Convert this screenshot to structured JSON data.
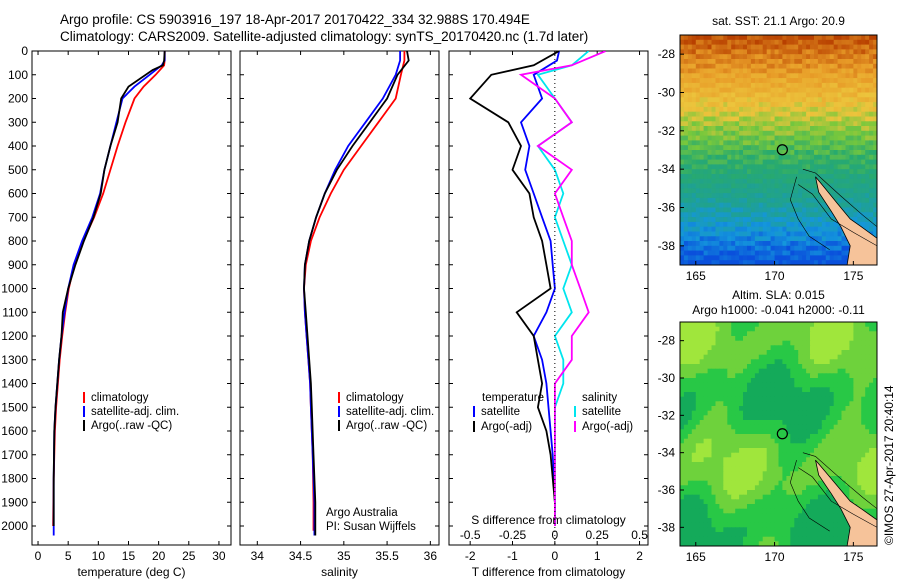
{
  "header": {
    "line1": "Argo profile: CS 5903916_197 18-Apr-2017 20170422_334 32.988S 170.494E",
    "line2": "Climatology: CARS2009. Satellite-adjusted climatology: synTS_20170420.nc (1.7d later)"
  },
  "colors": {
    "climatology": "#ff0000",
    "satellite": "#0000ff",
    "argo": "#000000",
    "sal_satellite": "#00e5ee",
    "sal_argo": "#ff00ff",
    "land": "#f6c39a"
  },
  "chart_data": [
    {
      "type": "line",
      "xlabel": "temperature (deg C)",
      "ylabel": "",
      "xlim": [
        -1,
        32
      ],
      "ylim": [
        2080,
        0
      ],
      "xticks": [
        "0",
        "5",
        "10",
        "15",
        "20",
        "25",
        "30"
      ],
      "yticks": [
        "0",
        "100",
        "200",
        "300",
        "400",
        "500",
        "600",
        "700",
        "800",
        "900",
        "1000",
        "1100",
        "1200",
        "1300",
        "1400",
        "1500",
        "1600",
        "1700",
        "1800",
        "1900",
        "2000"
      ],
      "legend": [
        "climatology",
        "satellite-adj. clim.",
        "Argo(..raw -QC)"
      ],
      "legend_position": "lower-right",
      "series": [
        {
          "name": "climatology",
          "x": [
            21,
            21,
            20.9,
            19.5,
            17.5,
            16,
            14.5,
            13.2,
            12,
            10.8,
            9.3,
            7.5,
            6,
            5.1,
            4.5,
            4,
            3.6,
            3.3,
            3,
            2.8,
            2.6,
            2.5
          ],
          "y": [
            0,
            40,
            60,
            100,
            150,
            200,
            300,
            400,
            500,
            600,
            700,
            800,
            900,
            1000,
            1100,
            1200,
            1300,
            1400,
            1500,
            1600,
            1800,
            2000
          ]
        },
        {
          "name": "satellite-adj. clim.",
          "x": [
            21,
            21,
            20.5,
            18.5,
            16,
            14,
            13,
            12,
            11,
            10.3,
            9,
            7.3,
            5.9,
            5,
            4.4,
            3.9,
            3.5,
            3.2,
            2.9,
            2.7,
            2.6,
            2.6
          ],
          "y": [
            0,
            40,
            60,
            100,
            150,
            200,
            300,
            400,
            500,
            600,
            700,
            800,
            900,
            1000,
            1100,
            1200,
            1300,
            1400,
            1500,
            1600,
            1800,
            2040
          ]
        },
        {
          "name": "Argo(..raw -QC)",
          "x": [
            21,
            20.9,
            20.7,
            19,
            15,
            13.8,
            13.2,
            12,
            11,
            10.4,
            9.2,
            7.6,
            6.2,
            5,
            4.1,
            3.9,
            3.5,
            3.2,
            2.9,
            2.7,
            2.6,
            2.6
          ],
          "y": [
            0,
            40,
            60,
            80,
            150,
            200,
            300,
            400,
            500,
            600,
            700,
            800,
            900,
            1000,
            1100,
            1200,
            1300,
            1400,
            1500,
            1600,
            1800,
            2000
          ]
        }
      ]
    },
    {
      "type": "line",
      "xlabel": "salinity",
      "xlim": [
        33.8,
        36.1
      ],
      "ylim": [
        2080,
        0
      ],
      "xticks": [
        "34",
        "34.5",
        "35",
        "35.5",
        "36"
      ],
      "legend": [
        "climatology",
        "satellite-adj. clim.",
        "Argo(..raw -QC)"
      ],
      "legend_position": "lower-right",
      "annotations": [
        "Argo Australia",
        "PI: Susan Wijffels"
      ],
      "series": [
        {
          "name": "climatology",
          "x": [
            35.7,
            35.7,
            35.66,
            35.6,
            35.4,
            35.2,
            35,
            34.85,
            34.72,
            34.62,
            34.56,
            34.54,
            34.55,
            34.57,
            34.59,
            34.61,
            34.62,
            34.64,
            34.65,
            34.65
          ],
          "y": [
            0,
            40,
            100,
            200,
            300,
            400,
            500,
            600,
            700,
            800,
            900,
            1000,
            1100,
            1200,
            1300,
            1400,
            1500,
            1700,
            1900,
            2020
          ]
        },
        {
          "name": "satellite-adj. clim.",
          "x": [
            35.65,
            35.65,
            35.6,
            35.45,
            35.25,
            35.05,
            34.9,
            34.78,
            34.68,
            34.6,
            34.55,
            34.54,
            34.55,
            34.57,
            34.59,
            34.61,
            34.62,
            34.64,
            34.66,
            34.66
          ],
          "y": [
            0,
            40,
            100,
            200,
            300,
            400,
            500,
            600,
            700,
            800,
            900,
            1000,
            1100,
            1200,
            1300,
            1400,
            1500,
            1700,
            1900,
            2040
          ]
        },
        {
          "name": "Argo(..raw -QC)",
          "x": [
            35.73,
            35.75,
            35.62,
            35.5,
            35.3,
            35.1,
            34.92,
            34.78,
            34.68,
            34.6,
            34.55,
            34.54,
            34.56,
            34.58,
            34.6,
            34.62,
            34.63,
            34.65,
            34.67,
            34.67
          ],
          "y": [
            0,
            40,
            100,
            200,
            300,
            400,
            500,
            600,
            700,
            800,
            900,
            1000,
            1100,
            1200,
            1300,
            1400,
            1500,
            1700,
            1900,
            2040
          ]
        }
      ]
    },
    {
      "type": "line",
      "xlabel": "T difference from climatology",
      "xlabel2": "S difference from climatology",
      "xlim": [
        -2.5,
        2.2
      ],
      "ylim": [
        2080,
        0
      ],
      "xticks": [
        "-2",
        "-1",
        "0",
        "1",
        "2"
      ],
      "xticks2": [
        "-0.5",
        "-0.25",
        "0",
        "0.25",
        "0.5"
      ],
      "legend_title_t": "temperature",
      "legend_title_s": "salinity",
      "legend_t": [
        "satellite",
        "Argo(-adj)"
      ],
      "legend_s": [
        "satellite",
        "Argo(-adj)"
      ],
      "series": [
        {
          "name": "satellite",
          "x": [
            0.1,
            0.05,
            -0.5,
            -0.3,
            -0.8,
            -0.6,
            -0.7,
            -0.5,
            -0.3,
            -0.1,
            -0.05,
            0,
            -0.2,
            -0.5,
            -0.3,
            -0.2,
            -0.15,
            -0.1,
            -0.05,
            0,
            0
          ],
          "y": [
            0,
            40,
            100,
            200,
            300,
            400,
            500,
            600,
            700,
            800,
            900,
            1000,
            1100,
            1200,
            1300,
            1400,
            1500,
            1600,
            1700,
            1900,
            2000
          ]
        },
        {
          "name": "Argo(-adj)",
          "x": [
            0.1,
            -0.5,
            -1.5,
            -2,
            -1.1,
            -0.8,
            -1,
            -0.6,
            -0.5,
            -0.3,
            -0.2,
            -0.1,
            -0.9,
            -0.5,
            -0.4,
            -0.3,
            -0.4,
            -0.2,
            -0.1,
            0,
            0
          ],
          "y": [
            0,
            60,
            100,
            200,
            300,
            400,
            500,
            600,
            700,
            800,
            900,
            1000,
            1100,
            1200,
            1300,
            1400,
            1500,
            1600,
            1700,
            1900,
            2000
          ]
        },
        {
          "name": "salinity satellite",
          "x": [
            0.2,
            0.1,
            -0.1,
            0,
            0.1,
            -0.1,
            0,
            0.05,
            0,
            0.05,
            0.1,
            0.05,
            0.1,
            0,
            0.05,
            0.05,
            0,
            0,
            0,
            0
          ],
          "y": [
            0,
            60,
            100,
            200,
            300,
            400,
            500,
            600,
            700,
            800,
            900,
            1000,
            1100,
            1200,
            1300,
            1400,
            1500,
            1700,
            1900,
            2000
          ]
        },
        {
          "name": "salinity Argo(-adj)",
          "x": [
            0.3,
            0.1,
            -0.2,
            0,
            0.1,
            -0.1,
            0.1,
            0,
            0.05,
            0.1,
            0.1,
            0.15,
            0.2,
            0.1,
            0.1,
            0,
            0,
            0,
            0,
            0
          ],
          "y": [
            0,
            60,
            100,
            200,
            300,
            400,
            500,
            600,
            700,
            800,
            900,
            1000,
            1100,
            1200,
            1300,
            1400,
            1500,
            1700,
            1900,
            2000
          ]
        }
      ]
    },
    {
      "type": "heatmap",
      "title": "sat. SST: 21.1  Argo: 20.9",
      "xlim": [
        164,
        176.5
      ],
      "ylim": [
        -39,
        -27
      ],
      "xticks": [
        "165",
        "170",
        "175"
      ],
      "yticks": [
        "-28",
        "-30",
        "-32",
        "-34",
        "-36",
        "-38"
      ],
      "marker": {
        "x": 170.494,
        "y": -32.988
      }
    },
    {
      "type": "heatmap",
      "title": "Altim. SLA: 0.015",
      "subtitle": "Argo h1000: -0.041  h2000: -0.11",
      "xlim": [
        164,
        176.5
      ],
      "ylim": [
        -39,
        -27
      ],
      "xticks": [
        "165",
        "170",
        "175"
      ],
      "yticks": [
        "-28",
        "-30",
        "-32",
        "-34",
        "-36",
        "-38"
      ],
      "marker": {
        "x": 170.494,
        "y": -32.988
      }
    }
  ],
  "watermark": "©IMOS 27-Apr-2017 20:40:14"
}
